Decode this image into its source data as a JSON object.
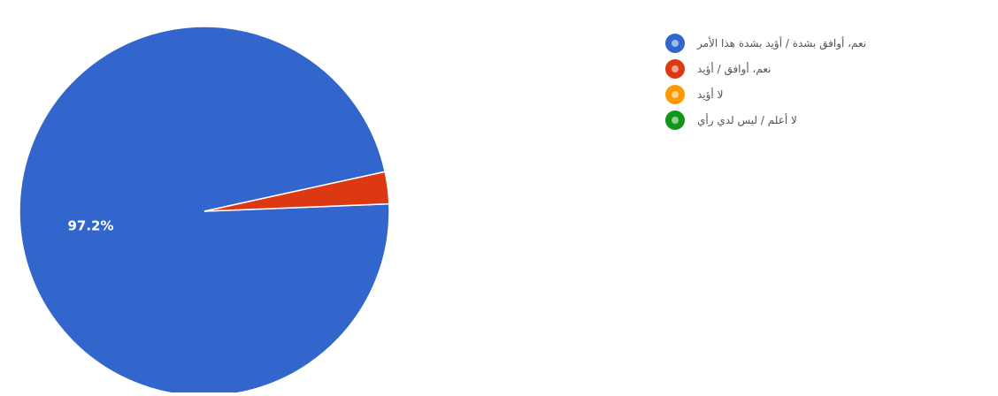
{
  "chart_data": {
    "type": "pie",
    "slices": [
      {
        "label": "نعم، أوافق بشدة / أؤيد بشدة هذا الأمر",
        "value": 97.2,
        "color": "#3366cc",
        "data_label": "97.2%"
      },
      {
        "label": "نعم، أوافق / أؤيد",
        "value": 2.8,
        "color": "#dc3912",
        "data_label": ""
      },
      {
        "label": "لا أؤيد",
        "value": 0,
        "color": "#ff9900",
        "data_label": ""
      },
      {
        "label": "لا أعلم / ليس لدي رأي",
        "value": 0,
        "color": "#109618",
        "data_label": ""
      }
    ],
    "legend_position": "right"
  }
}
